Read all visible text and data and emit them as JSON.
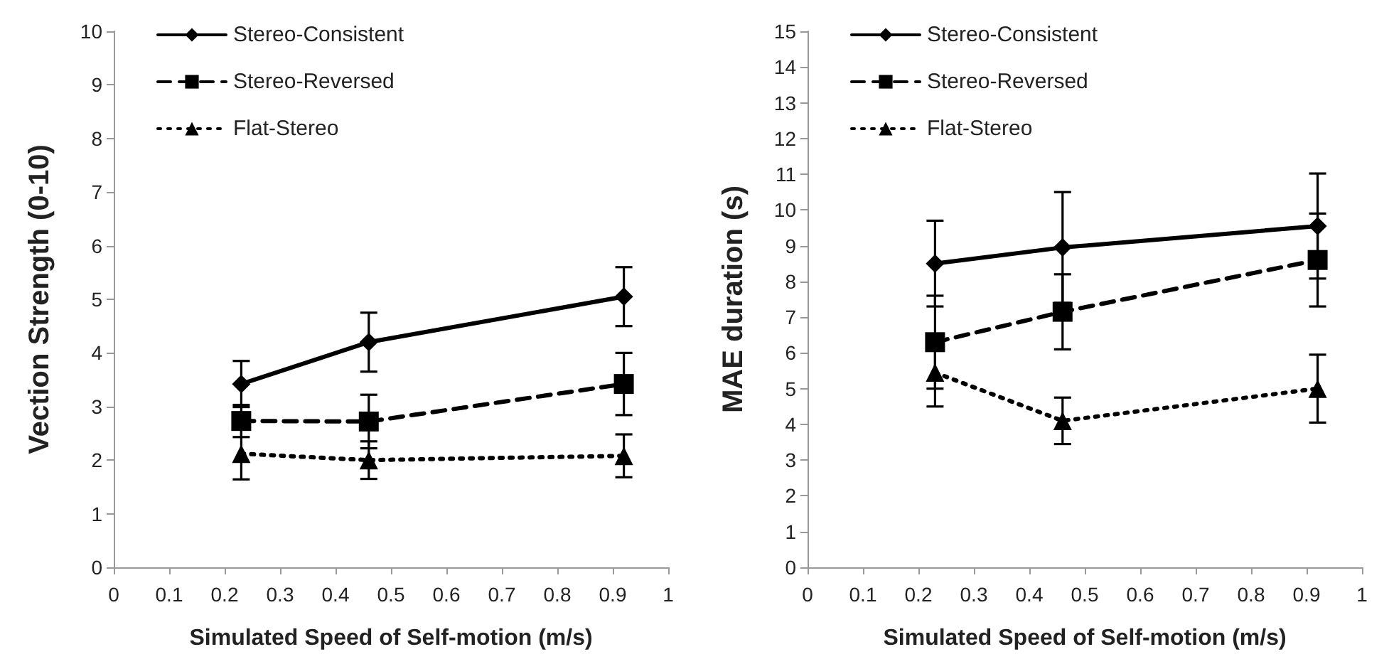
{
  "chart_data": [
    {
      "type": "line",
      "xlabel": "Simulated Speed of Self-motion (m/s)",
      "ylabel": "Vection Strength (0-10)",
      "x": [
        0.23,
        0.46,
        0.92
      ],
      "xlim": [
        0,
        1
      ],
      "xticks": [
        0,
        0.1,
        0.2,
        0.3,
        0.4,
        0.5,
        0.6,
        0.7,
        0.8,
        0.9,
        1
      ],
      "ylim": [
        0,
        10
      ],
      "yticks": [
        0,
        1,
        2,
        3,
        4,
        5,
        6,
        7,
        8,
        9,
        10
      ],
      "grid": false,
      "legend": "top left",
      "series": [
        {
          "name": "Stereo-Consistent",
          "color": "#000000",
          "marker": "diamond",
          "line_style": "solid",
          "values": [
            3.42,
            4.2,
            5.05
          ],
          "errors": [
            0.43,
            0.55,
            0.55
          ]
        },
        {
          "name": "Stereo-Reversed",
          "color": "#000000",
          "marker": "square",
          "line_style": "dashed",
          "values": [
            2.73,
            2.72,
            3.42
          ],
          "errors": [
            0.3,
            0.5,
            0.58
          ]
        },
        {
          "name": "Flat-Stereo",
          "color": "#000000",
          "marker": "triangle",
          "line_style": "dotted",
          "values": [
            2.12,
            2.0,
            2.08
          ],
          "errors": [
            0.48,
            0.35,
            0.4
          ]
        }
      ]
    },
    {
      "type": "line",
      "xlabel": "Simulated Speed of Self-motion (m/s)",
      "ylabel": "MAE duration (s)",
      "x": [
        0.23,
        0.46,
        0.92
      ],
      "xlim": [
        0,
        1
      ],
      "xticks": [
        0,
        0.1,
        0.2,
        0.3,
        0.4,
        0.5,
        0.6,
        0.7,
        0.8,
        0.9,
        1
      ],
      "ylim": [
        0,
        15
      ],
      "yticks": [
        0,
        1,
        2,
        3,
        4,
        5,
        6,
        7,
        8,
        9,
        10,
        11,
        12,
        13,
        14,
        15
      ],
      "grid": false,
      "legend": "top left",
      "series": [
        {
          "name": "Stereo-Consistent",
          "color": "#000000",
          "marker": "diamond",
          "line_style": "solid",
          "values": [
            8.5,
            8.95,
            9.55
          ],
          "errors": [
            1.2,
            1.55,
            1.47
          ]
        },
        {
          "name": "Stereo-Reversed",
          "color": "#000000",
          "marker": "square",
          "line_style": "dashed",
          "values": [
            6.3,
            7.15,
            8.6
          ],
          "errors": [
            1.3,
            1.05,
            1.3
          ]
        },
        {
          "name": "Flat-Stereo",
          "color": "#000000",
          "marker": "triangle",
          "line_style": "dotted",
          "values": [
            5.45,
            4.1,
            5.0
          ],
          "errors": [
            0.95,
            0.65,
            0.95
          ]
        }
      ]
    }
  ]
}
